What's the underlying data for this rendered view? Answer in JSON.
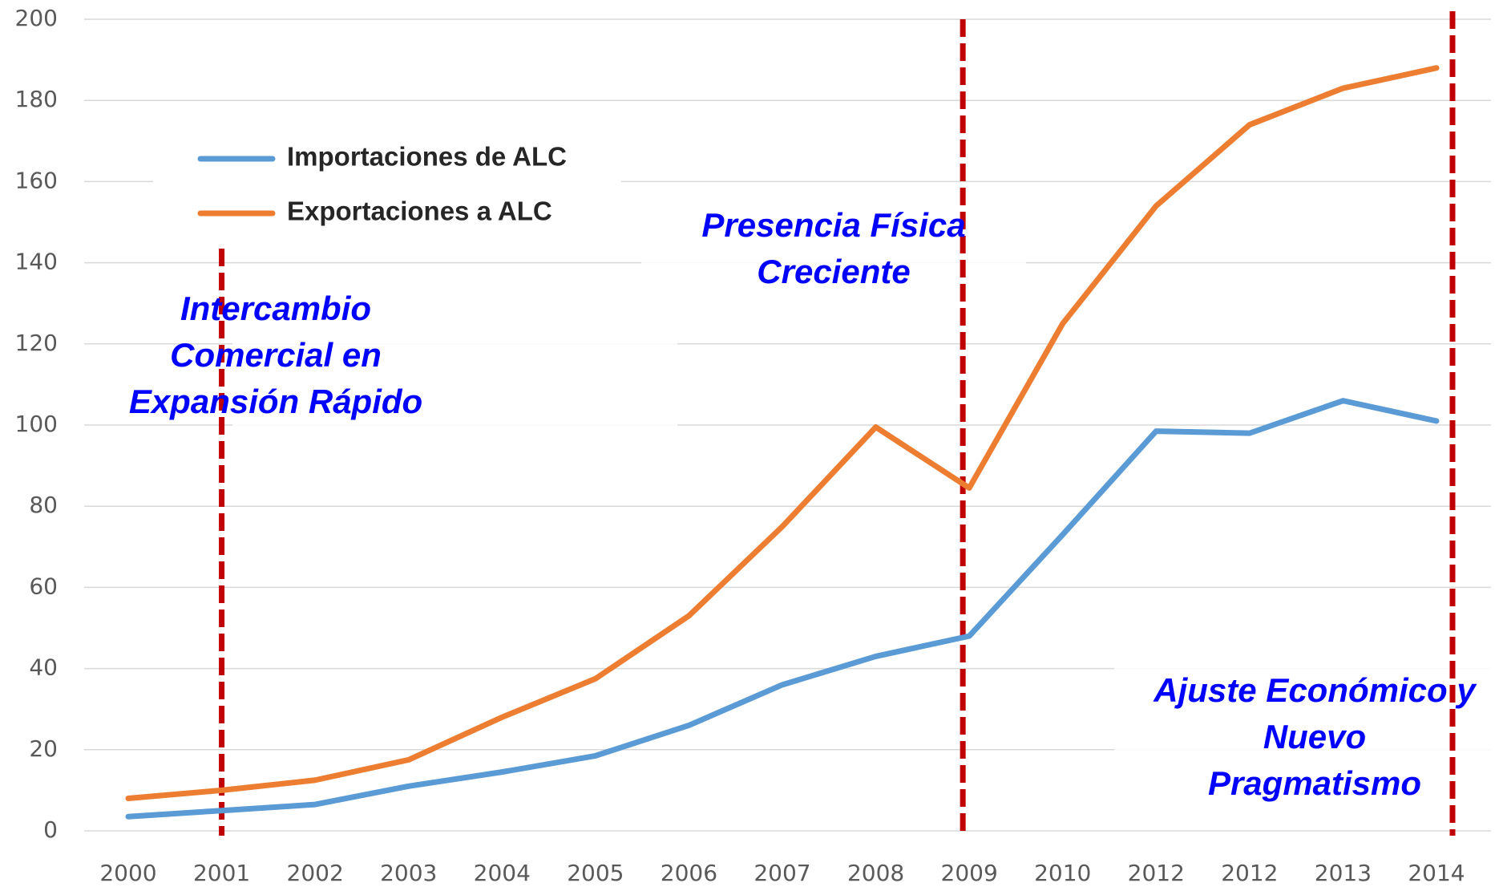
{
  "chart_data": {
    "type": "line",
    "categories": [
      "2000",
      "2001",
      "2002",
      "2003",
      "2004",
      "2005",
      "2006",
      "2007",
      "2008",
      "2009",
      "2010",
      "2012",
      "2012",
      "2013",
      "2014"
    ],
    "series": [
      {
        "name": "Importaciones de ALC",
        "color": "#5b9bd5",
        "values": [
          3.5,
          5,
          6.5,
          11,
          14.5,
          18.5,
          26,
          36,
          43,
          48,
          73,
          98.5,
          98,
          106,
          101
        ]
      },
      {
        "name": "Exportaciones a ALC",
        "color": "#ed7d31",
        "values": [
          8,
          10,
          12.5,
          17.5,
          28,
          37.5,
          53,
          75,
          99.5,
          84.5,
          125,
          154,
          174,
          183,
          188
        ]
      }
    ],
    "ylim": [
      0,
      200
    ],
    "yticks": [
      0,
      20,
      40,
      60,
      80,
      100,
      120,
      140,
      160,
      180,
      200
    ],
    "grid": true,
    "annotations": [
      [
        "Intercambio",
        "Comercial en",
        "Expansión Rápido"
      ],
      [
        "Presencia Física",
        "Creciente"
      ],
      [
        "Ajuste Económico y",
        "Nuevo",
        "Pragmatismo"
      ]
    ]
  }
}
